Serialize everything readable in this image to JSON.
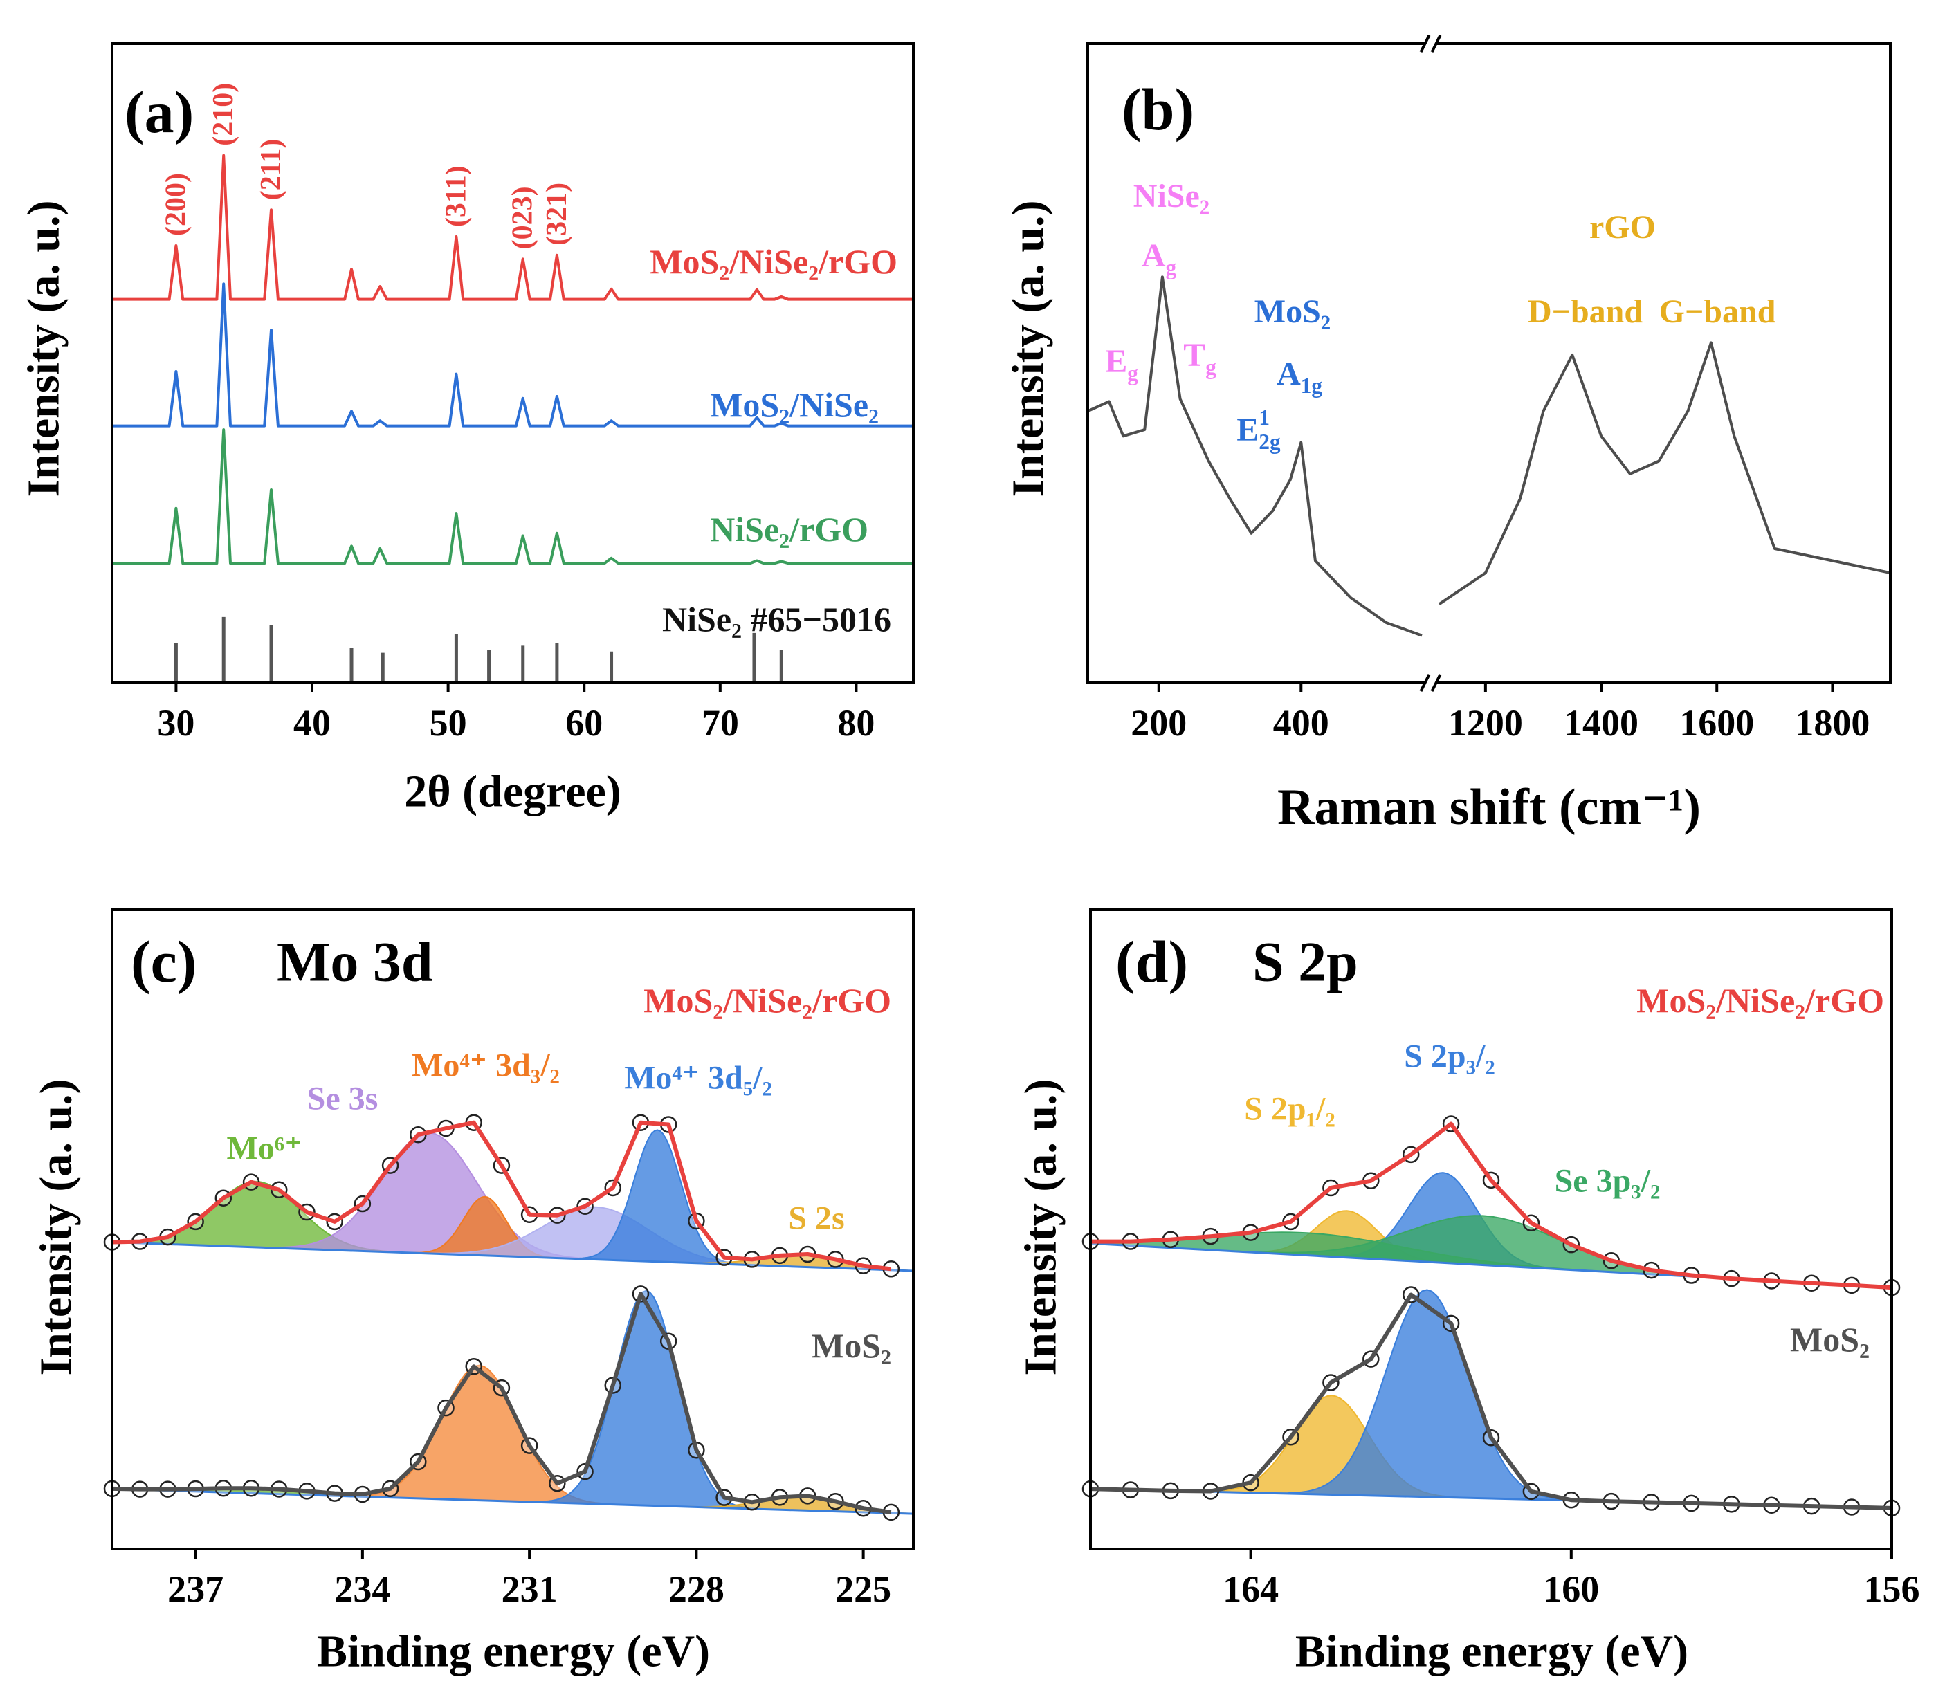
{
  "chart_data": [
    {
      "type": "line",
      "panel_label": "(a)",
      "xlabel": "2θ (degree)",
      "ylabel": "Intensity (a. u.)",
      "xlim": [
        25.3,
        84.2
      ],
      "xticks": [
        30,
        40,
        50,
        60,
        70,
        80
      ],
      "ylim": [
        0,
        100
      ],
      "x": [
        25.3,
        29.5,
        30,
        30.5,
        33,
        33.5,
        34,
        36.5,
        37,
        37.5,
        42.4,
        42.9,
        43.4,
        44.5,
        45,
        45.5,
        50.1,
        50.6,
        51.1,
        55,
        55.5,
        56,
        57.5,
        58,
        58.5,
        61.5,
        62,
        62.5,
        72.2,
        72.7,
        73.2,
        74,
        74.5,
        75,
        84.2
      ],
      "series": [
        {
          "name": "MoS₂/NiSe₂/rGO",
          "color": "#e8413e",
          "values": [
            60,
            60,
            68.4,
            60,
            60,
            82.5,
            60,
            60,
            74,
            60,
            60,
            64.7,
            60,
            60,
            62,
            60,
            60,
            69.8,
            60,
            60,
            66.3,
            60,
            60,
            66.9,
            60,
            60,
            61.6,
            60,
            60,
            61.5,
            60,
            60,
            60.4,
            60,
            60
          ]
        },
        {
          "name": "MoS₂/NiSe₂",
          "color": "#2b6fd6",
          "values": [
            40.2,
            40.2,
            48.7,
            40.2,
            40.2,
            62.4,
            40.2,
            40.2,
            55.2,
            40.2,
            40.2,
            42.5,
            40.2,
            40.2,
            41,
            40.2,
            40.2,
            48.3,
            40.2,
            40.2,
            44.5,
            40.2,
            40.2,
            44.8,
            40.2,
            40.2,
            41,
            40.2,
            40.2,
            41.5,
            40.2,
            40.2,
            40.6,
            40.2,
            40.2
          ]
        },
        {
          "name": "NiSe₂/rGO",
          "color": "#3a9e5c",
          "values": [
            18.7,
            18.7,
            27.3,
            18.7,
            18.7,
            39.6,
            18.7,
            18.7,
            30.2,
            18.7,
            18.7,
            21.4,
            18.7,
            18.7,
            21,
            18.7,
            18.7,
            26.5,
            18.7,
            18.7,
            23,
            18.7,
            18.7,
            23.4,
            18.7,
            18.7,
            19.5,
            18.7,
            18.7,
            19.1,
            18.7,
            18.7,
            19,
            18.7,
            18.7
          ]
        }
      ],
      "reference": {
        "name": "NiSe₂ #65−5016",
        "color": "#555555",
        "x": [
          30,
          33.5,
          37,
          42.9,
          45.2,
          50.6,
          53,
          55.5,
          58,
          62,
          72.5,
          74.5
        ],
        "values": [
          6.2,
          10.3,
          9,
          5.5,
          4.7,
          7.6,
          5.1,
          5.8,
          6.2,
          4.9,
          7.8,
          5.1
        ]
      },
      "hkl": {
        "color": "#e8413e",
        "labels": [
          "(200)",
          "(210)",
          "(211)",
          "(311)",
          "(023)",
          "(321)"
        ],
        "x": [
          30,
          33.5,
          37,
          50.6,
          55.5,
          58
        ]
      }
    },
    {
      "type": "line",
      "panel_label": "(b)",
      "xlabel": "Raman shift (cm⁻¹)",
      "ylabel": "Intensity (a. u.)",
      "x_segments": [
        {
          "xlim": [
            100,
            570
          ],
          "xticks": [
            200,
            400
          ]
        },
        {
          "xlim": [
            1120,
            1900
          ],
          "xticks": [
            1200,
            1400,
            1600,
            1800
          ]
        }
      ],
      "ylim": [
        0,
        100
      ],
      "x": [
        100,
        130,
        150,
        180,
        205,
        230,
        270,
        300,
        330,
        360,
        385,
        400,
        420,
        470,
        520,
        570,
        null,
        1120,
        1200,
        1260,
        1300,
        1350,
        1400,
        1450,
        1500,
        1550,
        1590,
        1630,
        1700,
        1800,
        1900
      ],
      "series": [
        {
          "color": "#4d4d4d",
          "values": [
            42.5,
            44,
            38.6,
            39.6,
            63.5,
            44.4,
            34.7,
            28.8,
            23.4,
            26.9,
            31.8,
            37.6,
            19.1,
            13.3,
            9.4,
            7.4,
            null,
            12.3,
            17.2,
            28.8,
            42.5,
            51.3,
            38.6,
            32.7,
            34.7,
            42.5,
            53.2,
            38.6,
            21,
            19.1,
            17.2
          ]
        }
      ],
      "annotations": [
        {
          "text": "NiSe₂",
          "color": "#f57ef5"
        },
        {
          "text": "A",
          "sub": "g",
          "color": "#f57ef5"
        },
        {
          "text": "E",
          "sub": "g",
          "color": "#f57ef5"
        },
        {
          "text": "T",
          "sub": "g",
          "color": "#f57ef5"
        },
        {
          "text": "MoS₂",
          "color": "#2b6fd6"
        },
        {
          "text": "A",
          "sub": "1g",
          "color": "#2b6fd6"
        },
        {
          "text": "E",
          "sup": "1",
          "sub": "2g",
          "color": "#2b6fd6"
        },
        {
          "text": "rGO",
          "color": "#e6ad1e"
        },
        {
          "text": "D−band",
          "color": "#e6ad1e"
        },
        {
          "text": "G−band",
          "color": "#e6ad1e"
        }
      ]
    },
    {
      "type": "xps",
      "panel_label": "(c)",
      "title": "Mo 3d",
      "xlabel": "Binding energy (eV)",
      "ylabel": "Intensity (a. u.)",
      "xlim": [
        238.5,
        224.1
      ],
      "xticks": [
        237,
        234,
        231,
        228,
        225
      ],
      "ylim": [
        0,
        100
      ],
      "x": [
        238.5,
        238,
        237.5,
        237,
        236.5,
        236,
        235.5,
        235,
        234.5,
        234,
        233.5,
        233,
        232.5,
        232,
        231.5,
        231,
        230.5,
        230,
        229.5,
        229,
        228.5,
        228,
        227.5,
        227,
        226.5,
        226,
        225.5,
        225,
        224.5
      ],
      "series": [
        {
          "name": "MoS₂/NiSe₂/rGO",
          "color": "#e8413e",
          "baseline": [
            48,
            43.5
          ],
          "values": [
            48.0,
            48.1,
            48.8,
            51.2,
            54.9,
            57.4,
            56.2,
            52.7,
            51.2,
            54.0,
            60.0,
            64.8,
            65.8,
            66.7,
            60.0,
            52.3,
            52.2,
            53.6,
            56.5,
            66.7,
            66.4,
            51.3,
            45.6,
            45.3,
            45.9,
            46.1,
            45.3,
            44.3,
            43.8
          ],
          "components": [
            {
              "name": "Mo⁶⁺",
              "color": "#6fb83a",
              "center": 235.9,
              "height": 10.3,
              "fwhm": 1.8
            },
            {
              "name": "Se 3s",
              "color": "#b48fe0",
              "center": 232.8,
              "height": 18.9,
              "fwhm": 2.0
            },
            {
              "name": "Mo⁴⁺ 3d₃/₂",
              "color": "#f07a22",
              "center": 231.8,
              "height": 9.2,
              "fwhm": 0.9
            },
            {
              "color": "#b0b0f0",
              "center": 229.8,
              "height": 8.2,
              "fwhm": 2.2
            },
            {
              "name": "Mo⁴⁺ 3d₅/₂",
              "color": "#3a7fdc",
              "center": 228.7,
              "height": 20.6,
              "fwhm": 1.0
            },
            {
              "name": "S 2s",
              "color": "#e8b030",
              "center": 226.1,
              "height": 2,
              "fwhm": 1.6
            }
          ]
        },
        {
          "name": "MoS₂",
          "color": "#505050",
          "baseline": [
            9.4,
            5.5
          ],
          "values": [
            9.43,
            9.35,
            9.35,
            9.41,
            9.5,
            9.5,
            9.36,
            9.05,
            8.7,
            8.55,
            9.44,
            13.63,
            22.07,
            28.54,
            25.2,
            16.17,
            10.26,
            12.11,
            25.6,
            39.9,
            32.5,
            15.45,
            8.05,
            7.33,
            8.08,
            8.29,
            7.44,
            6.36,
            5.75
          ],
          "components": [
            {
              "color": "#6fb83a",
              "center": 235.8,
              "height": 0.8,
              "fwhm": 2.5
            },
            {
              "color": "#f58a3c",
              "center": 231.9,
              "height": 21.1,
              "fwhm": 1.6
            },
            {
              "color": "#3a7fdc",
              "center": 228.9,
              "height": 33.6,
              "fwhm": 1.3
            },
            {
              "color": "#e8b030",
              "center": 226.1,
              "height": 2.3,
              "fwhm": 1.6
            }
          ]
        }
      ]
    },
    {
      "type": "xps",
      "panel_label": "(d)",
      "title": "S 2p",
      "xlabel": "Binding energy (eV)",
      "ylabel": "Intensity (a. u.)",
      "xlim": [
        166,
        156
      ],
      "xticks": [
        164,
        160,
        156
      ],
      "ylim": [
        0,
        100
      ],
      "x": [
        166,
        165.5,
        165,
        164.5,
        164,
        163.5,
        163,
        162.5,
        162,
        161.5,
        161,
        160.5,
        160,
        159.5,
        159,
        158.5,
        158,
        157.5,
        157,
        156.5,
        156
      ],
      "series": [
        {
          "name": "MoS₂/NiSe₂/rGO",
          "color": "#e8413e",
          "baseline": [
            47.8,
            40.9
          ],
          "values": [
            48.1,
            48.1,
            48.4,
            48.9,
            49.5,
            51.2,
            56.5,
            57.6,
            61.7,
            66.5,
            57.7,
            51.0,
            47.6,
            45.1,
            43.6,
            42.8,
            42.3,
            41.94,
            41.59,
            41.25,
            40.9
          ],
          "components": [
            {
              "name": "S 2p₁/₂",
              "color": "#f0b830",
              "center": 162.8,
              "height": 7.3,
              "fwhm": 0.9
            },
            {
              "name": "S 2p₃/₂",
              "color": "#3a7fdc",
              "center": 161.6,
              "height": 14.1,
              "fwhm": 1.0
            },
            {
              "name": "Se 3p₃/₂",
              "color": "#3aa864",
              "center": 161.1,
              "height": 7.7,
              "fwhm": 2.2
            },
            {
              "color": "#3aa864",
              "center": 163.3,
              "height": 3.5,
              "fwhm": 2.8
            }
          ]
        },
        {
          "name": "MoS₂",
          "color": "#505050",
          "baseline": [
            9.4,
            6.4
          ],
          "values": [
            9.4,
            9.25,
            9.1,
            9.04,
            10.37,
            17.51,
            26.03,
            29.7,
            39.77,
            35.3,
            17.4,
            9.0,
            7.66,
            7.45,
            7.3,
            7.15,
            7.0,
            6.85,
            6.7,
            6.55,
            6.4
          ],
          "components": [
            {
              "color": "#f0b830",
              "center": 162.99,
              "height": 15.5,
              "fwhm": 1.1
            },
            {
              "color": "#3a7fdc",
              "center": 161.8,
              "height": 32.4,
              "fwhm": 1.2
            }
          ]
        }
      ]
    }
  ]
}
